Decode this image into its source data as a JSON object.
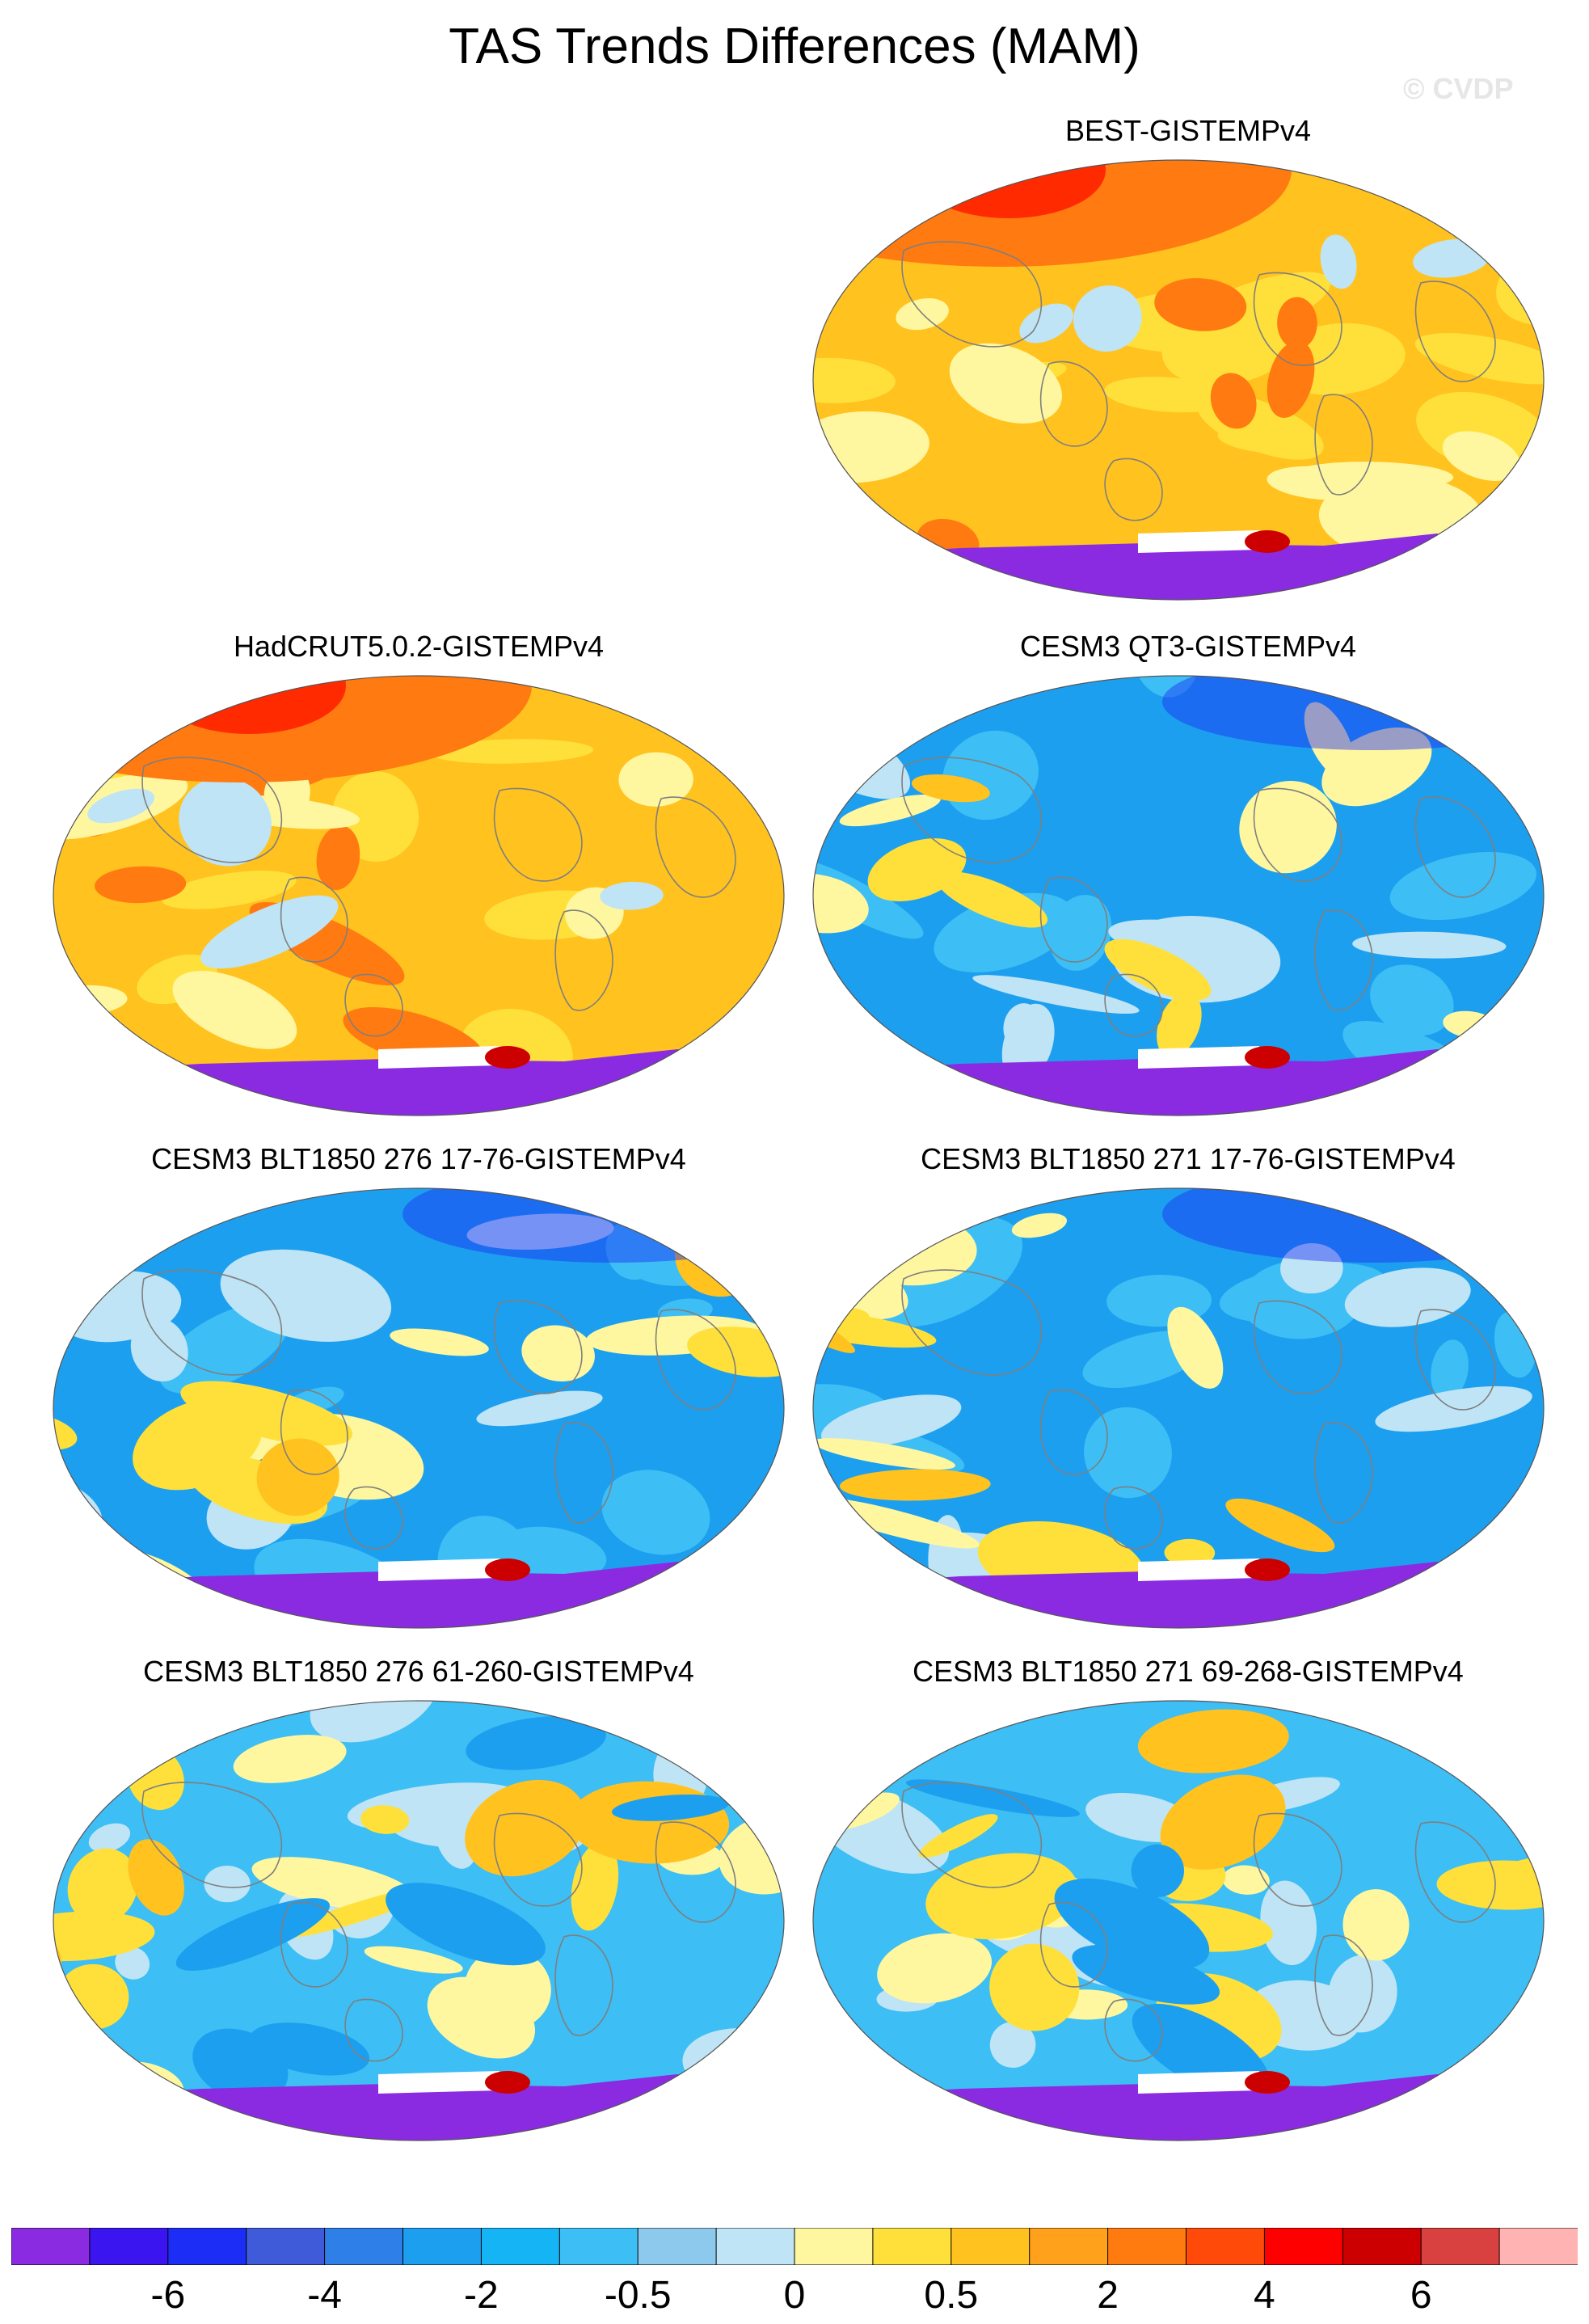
{
  "title": "TAS Trends Differences (MAM)",
  "watermark": "© CVDP",
  "panels": [
    {
      "title": "BEST-GISTEMPv4",
      "pattern": "warm",
      "arctic": "strong"
    },
    {
      "title": "HadCRUT5.0.2-GISTEMPv4",
      "pattern": "warm",
      "arctic": "strong"
    },
    {
      "title": "CESM3 QT3-GISTEMPv4",
      "pattern": "cool",
      "arctic": "weak"
    },
    {
      "title": "CESM3 BLT1850 276 17-76-GISTEMPv4",
      "pattern": "cool",
      "arctic": "weak"
    },
    {
      "title": "CESM3 BLT1850 271 17-76-GISTEMPv4",
      "pattern": "cool",
      "arctic": "weak"
    },
    {
      "title": "CESM3 BLT1850 276 61-260-GISTEMPv4",
      "pattern": "mixed",
      "arctic": "none"
    },
    {
      "title": "CESM3 BLT1850 271 69-268-GISTEMPv4",
      "pattern": "mixed",
      "arctic": "none"
    }
  ],
  "colorbar": {
    "labels": [
      "-6",
      "-4",
      "-2",
      "-0.5",
      "0",
      "0.5",
      "2",
      "4",
      "6"
    ],
    "colors": [
      "#8a2be2",
      "#3a15f0",
      "#1c2ef5",
      "#3f5bd9",
      "#2f7fe8",
      "#1d9ff0",
      "#14b4f5",
      "#3dbef5",
      "#8cc9ec",
      "#bfe4f5",
      "#fff7a0",
      "#ffe03a",
      "#ffc21f",
      "#ffa11a",
      "#ff7b10",
      "#ff4a0a",
      "#ff0000",
      "#cc0000",
      "#d94040",
      "#ffb3b3"
    ]
  },
  "legend_colors": {
    "strong_warm": "#ff7a10",
    "warm": "#ffc21f",
    "light_warm": "#ffe03a",
    "pale_yellow": "#fff7a0",
    "light_blue": "#bfe4f5",
    "mid_blue": "#3dbef5",
    "blue": "#1d9ff0",
    "antarctica": "#8a2be2",
    "deep_red": "#cc0000",
    "coast": "#7f7f7f"
  }
}
